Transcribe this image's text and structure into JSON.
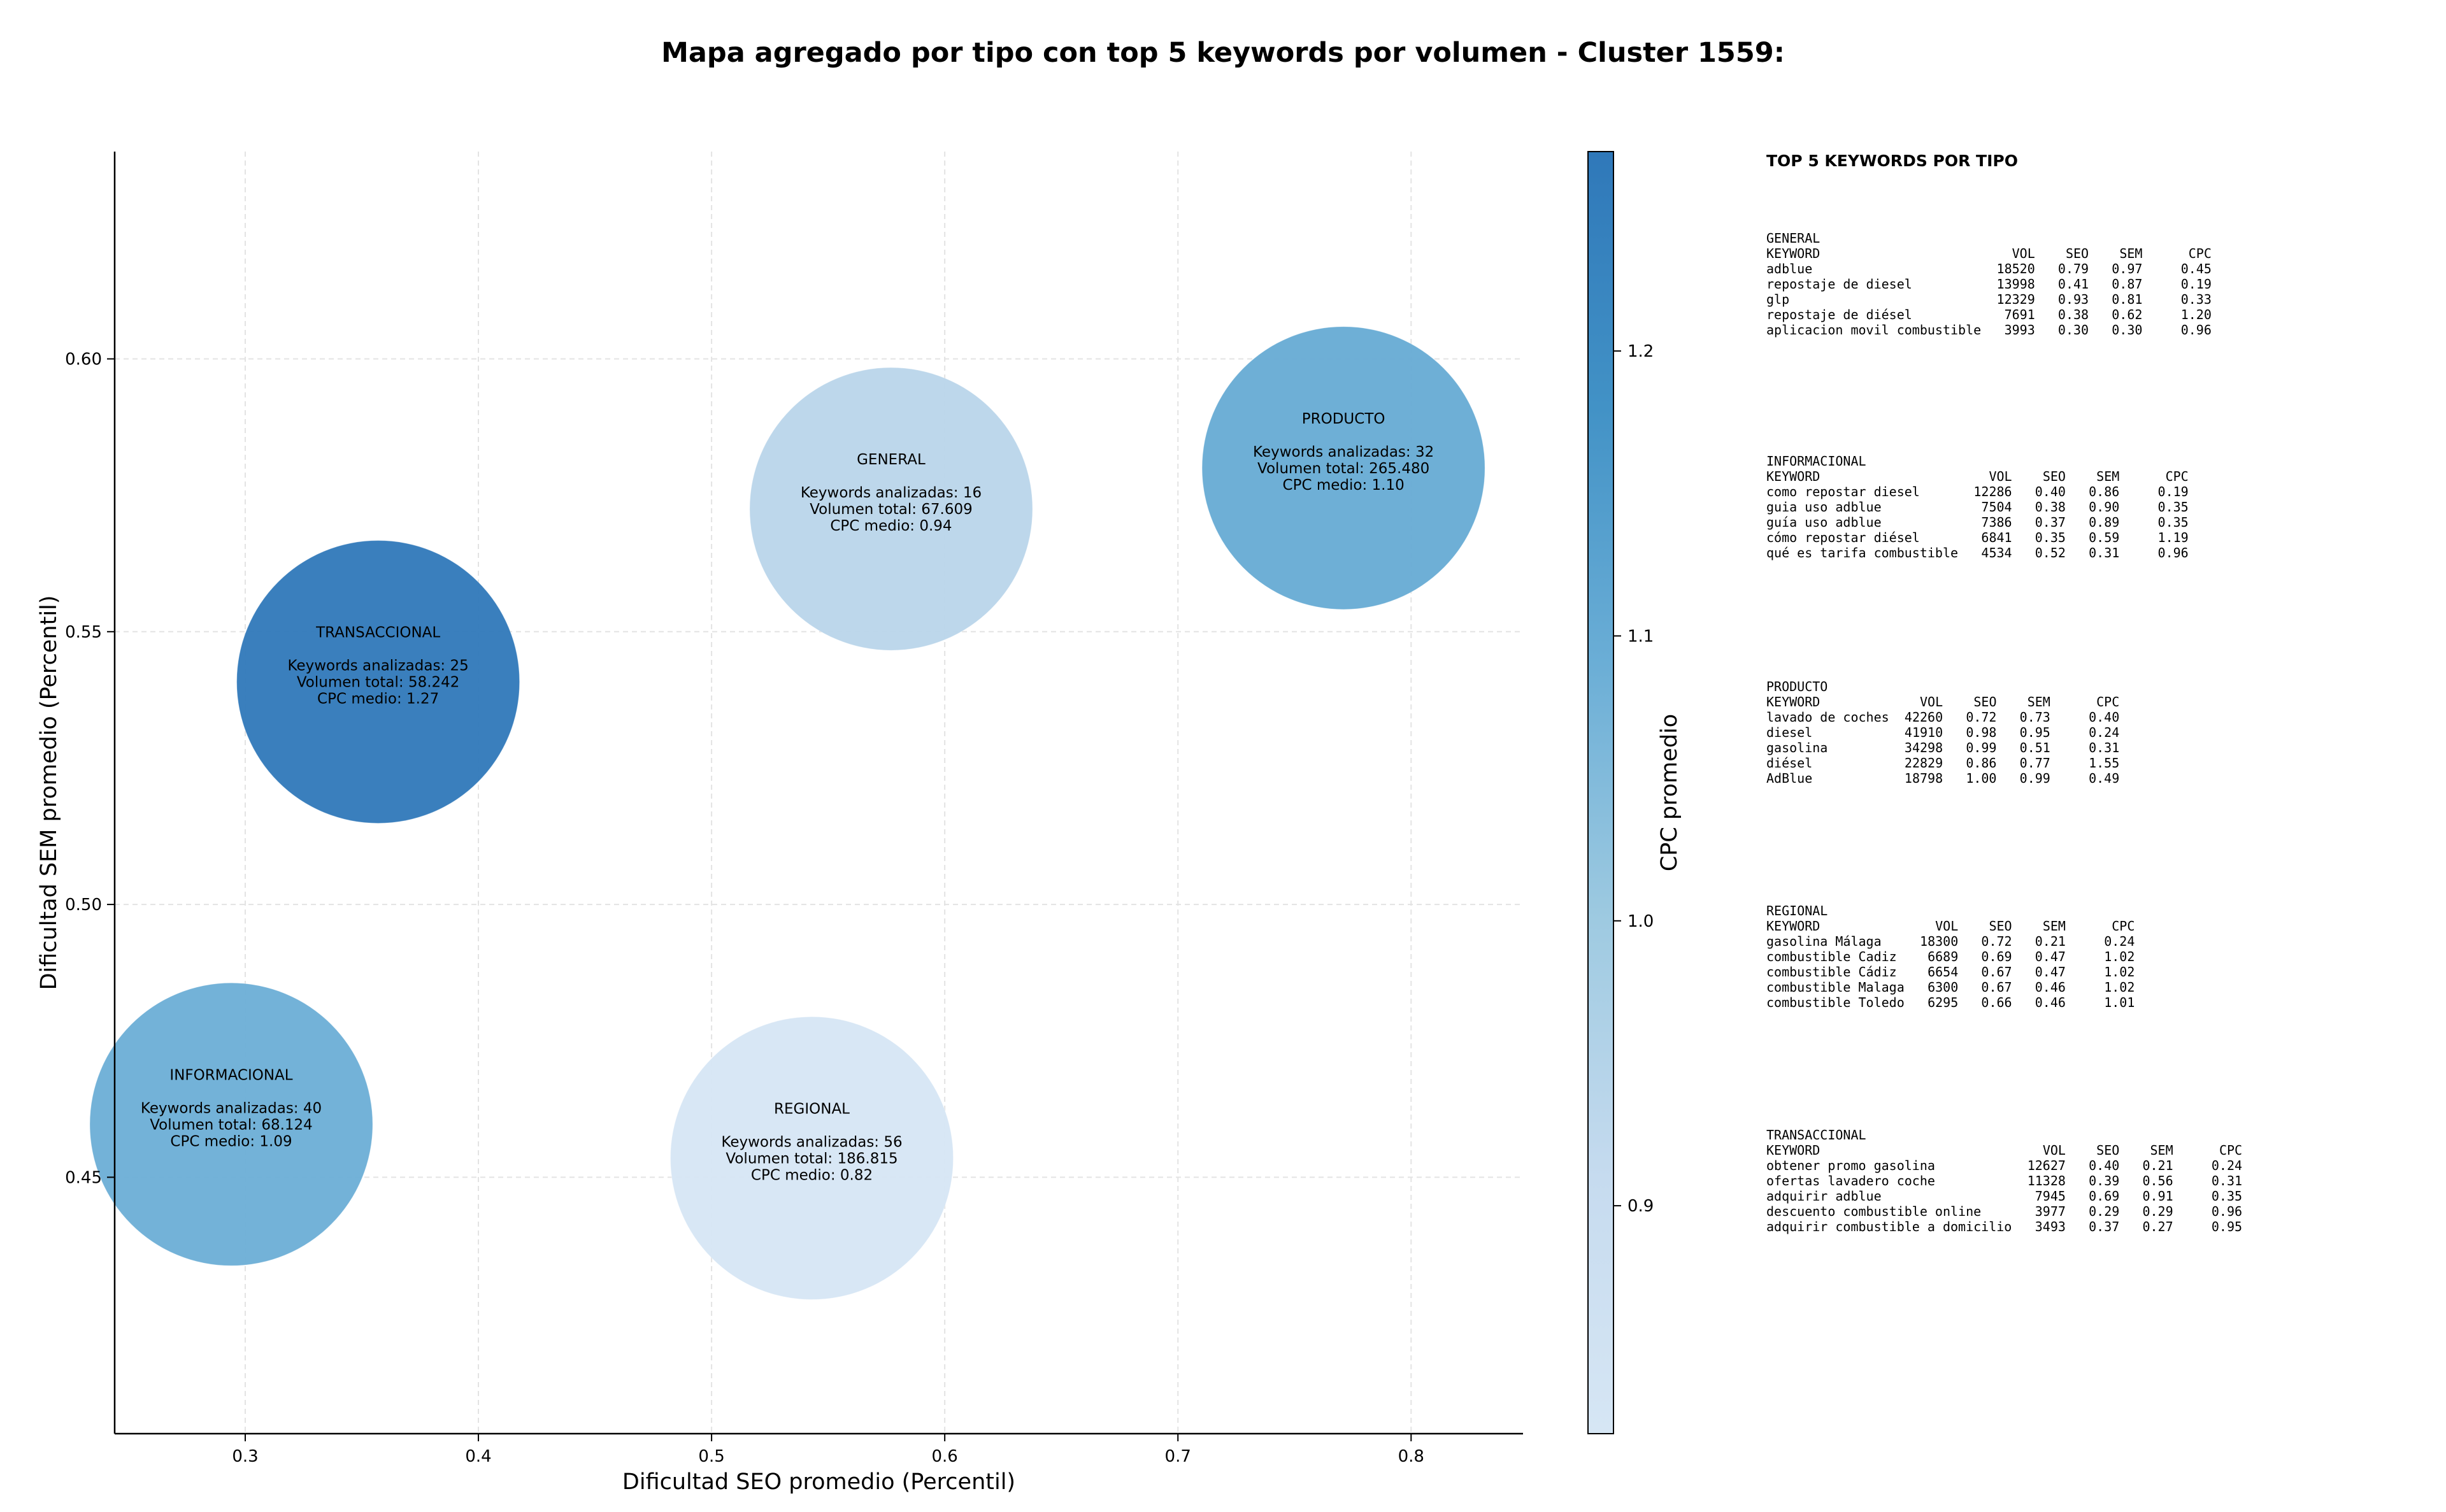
{
  "title": "Mapa agregado por tipo con top 5 keywords por volumen - Cluster 1559:",
  "chart_data": {
    "type": "scatter",
    "subtype": "bubble",
    "title": "Mapa agregado por tipo con top 5 keywords por volumen - Cluster 1559:",
    "xlabel": "Dificultad SEO promedio (Percentil)",
    "ylabel": "Dificultad SEM promedio (Percentil)",
    "xlim": [
      0.244,
      0.848
    ],
    "ylim": [
      0.403,
      0.638
    ],
    "xticks": [
      0.3,
      0.4,
      0.5,
      0.6,
      0.7,
      0.8
    ],
    "xtick_labels": [
      "0.3",
      "0.4",
      "0.5",
      "0.6",
      "0.7",
      "0.8"
    ],
    "yticks": [
      0.45,
      0.5,
      0.55,
      0.6
    ],
    "ytick_labels": [
      "0.45",
      "0.50",
      "0.55",
      "0.60"
    ],
    "grid": true,
    "colorbar": {
      "label": "CPC promedio",
      "range": [
        0.82,
        1.27
      ],
      "ticks": [
        0.9,
        1.0,
        1.1,
        1.2
      ],
      "tick_labels": [
        "0.9",
        "1.0",
        "1.1",
        "1.2"
      ],
      "colormap": "Blues"
    },
    "points": [
      {
        "type": "GENERAL",
        "x": 0.577,
        "y": 0.5725,
        "keywords": 16,
        "volume": 67609,
        "cpc": 0.94,
        "lines": [
          "GENERAL",
          "",
          "Keywords analizadas: 16",
          "Volumen total: 67.609",
          "CPC medio: 0.94"
        ]
      },
      {
        "type": "INFORMACIONAL",
        "x": 0.294,
        "y": 0.4597,
        "keywords": 40,
        "volume": 68124,
        "cpc": 1.09,
        "lines": [
          "INFORMACIONAL",
          "",
          "Keywords analizadas: 40",
          "Volumen total: 68.124",
          "CPC medio: 1.09"
        ]
      },
      {
        "type": "PRODUCTO",
        "x": 0.771,
        "y": 0.58,
        "keywords": 32,
        "volume": 265480,
        "cpc": 1.1,
        "lines": [
          "PRODUCTO",
          "",
          "Keywords analizadas: 32",
          "Volumen total: 265.480",
          "CPC medio: 1.10"
        ]
      },
      {
        "type": "REGIONAL",
        "x": 0.543,
        "y": 0.4535,
        "keywords": 56,
        "volume": 186815,
        "cpc": 0.82,
        "lines": [
          "REGIONAL",
          "",
          "Keywords analizadas: 56",
          "Volumen total: 186.815",
          "CPC medio: 0.82"
        ]
      },
      {
        "type": "TRANSACCIONAL",
        "x": 0.357,
        "y": 0.5408,
        "keywords": 25,
        "volume": 58242,
        "cpc": 1.27,
        "lines": [
          "TRANSACCIONAL",
          "",
          "Keywords analizadas: 25",
          "Volumen total: 58.242",
          "CPC medio: 1.27"
        ]
      }
    ]
  },
  "side_panel": {
    "heading": "TOP 5 KEYWORDS POR TIPO",
    "blocks": [
      {
        "type": "GENERAL",
        "header": [
          "KEYWORD",
          "VOL",
          "SEO",
          "SEM",
          "CPC"
        ],
        "rows": [
          [
            "adblue",
            "18520",
            "0.79",
            "0.97",
            "0.45"
          ],
          [
            "repostaje de diesel",
            "13998",
            "0.41",
            "0.87",
            "0.19"
          ],
          [
            "glp",
            "12329",
            "0.93",
            "0.81",
            "0.33"
          ],
          [
            "repostaje de diésel",
            "7691",
            "0.38",
            "0.62",
            "1.20"
          ],
          [
            "aplicacion movil combustible",
            "3993",
            "0.30",
            "0.30",
            "0.96"
          ]
        ]
      },
      {
        "type": "INFORMACIONAL",
        "header": [
          "KEYWORD",
          "VOL",
          "SEO",
          "SEM",
          "CPC"
        ],
        "rows": [
          [
            "como repostar diesel",
            "12286",
            "0.40",
            "0.86",
            "0.19"
          ],
          [
            "guia uso adblue",
            "7504",
            "0.38",
            "0.90",
            "0.35"
          ],
          [
            "guía uso adblue",
            "7386",
            "0.37",
            "0.89",
            "0.35"
          ],
          [
            "cómo repostar diésel",
            "6841",
            "0.35",
            "0.59",
            "1.19"
          ],
          [
            "qué es tarifa combustible",
            "4534",
            "0.52",
            "0.31",
            "0.96"
          ]
        ]
      },
      {
        "type": "PRODUCTO",
        "header": [
          "KEYWORD",
          "VOL",
          "SEO",
          "SEM",
          "CPC"
        ],
        "rows": [
          [
            "lavado de coches",
            "42260",
            "0.72",
            "0.73",
            "0.40"
          ],
          [
            "diesel",
            "41910",
            "0.98",
            "0.95",
            "0.24"
          ],
          [
            "gasolina",
            "34298",
            "0.99",
            "0.51",
            "0.31"
          ],
          [
            "diésel",
            "22829",
            "0.86",
            "0.77",
            "1.55"
          ],
          [
            "AdBlue",
            "18798",
            "1.00",
            "0.99",
            "0.49"
          ]
        ]
      },
      {
        "type": "REGIONAL",
        "header": [
          "KEYWORD",
          "VOL",
          "SEO",
          "SEM",
          "CPC"
        ],
        "rows": [
          [
            "gasolina Málaga",
            "18300",
            "0.72",
            "0.21",
            "0.24"
          ],
          [
            "combustible Cadiz",
            "6689",
            "0.69",
            "0.47",
            "1.02"
          ],
          [
            "combustible Cádiz",
            "6654",
            "0.67",
            "0.47",
            "1.02"
          ],
          [
            "combustible Malaga",
            "6300",
            "0.67",
            "0.46",
            "1.02"
          ],
          [
            "combustible Toledo",
            "6295",
            "0.66",
            "0.46",
            "1.01"
          ]
        ]
      },
      {
        "type": "TRANSACCIONAL",
        "header": [
          "KEYWORD",
          "VOL",
          "SEO",
          "SEM",
          "CPC"
        ],
        "rows": [
          [
            "obtener promo gasolina",
            "12627",
            "0.40",
            "0.21",
            "0.24"
          ],
          [
            "ofertas lavadero coche",
            "11328",
            "0.39",
            "0.56",
            "0.31"
          ],
          [
            "adquirir adblue",
            "7945",
            "0.69",
            "0.91",
            "0.35"
          ],
          [
            "descuento combustible online",
            "3977",
            "0.29",
            "0.29",
            "0.96"
          ],
          [
            "adquirir combustible a domicilio",
            "3493",
            "0.37",
            "0.27",
            "0.95"
          ]
        ]
      }
    ]
  }
}
